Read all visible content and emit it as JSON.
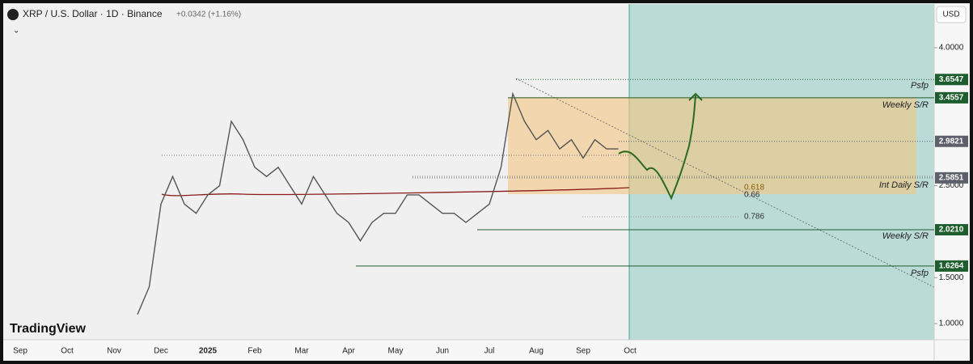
{
  "chart_data": {
    "type": "line",
    "symbol": "XRP / U.S. Dollar · 1D · Binance",
    "change": "+0.0342 (+1.16%)",
    "currency": "USD",
    "brand": "TradingView",
    "categories": [
      "Sep",
      null,
      null,
      null,
      "Oct",
      null,
      null,
      null,
      "Nov",
      null,
      null,
      null,
      "Dec",
      null,
      null,
      null,
      "2025",
      null,
      null,
      null,
      "Feb",
      null,
      null,
      null,
      "Mar",
      null,
      null,
      null,
      "Apr",
      null,
      null,
      null,
      "May",
      null,
      null,
      null,
      "Jun",
      null,
      null,
      null,
      "Jul",
      null,
      null,
      null,
      "Aug",
      null,
      null,
      null,
      "Sep",
      null,
      null,
      null,
      "Oct",
      null,
      null,
      null,
      null,
      null,
      null,
      null,
      null,
      null,
      null,
      null,
      null,
      null,
      null,
      null,
      null,
      null,
      null,
      null,
      null,
      null,
      null,
      null
    ],
    "values": [
      null,
      null,
      null,
      null,
      null,
      null,
      null,
      null,
      null,
      null,
      1.1,
      1.4,
      2.3,
      2.6,
      2.3,
      2.2,
      2.4,
      2.5,
      3.2,
      3.0,
      2.7,
      2.6,
      2.7,
      2.5,
      2.3,
      2.6,
      2.4,
      2.2,
      2.1,
      1.9,
      2.1,
      2.2,
      2.2,
      2.4,
      2.4,
      2.3,
      2.2,
      2.2,
      2.1,
      2.2,
      2.3,
      2.7,
      3.5,
      3.2,
      3.0,
      3.1,
      2.9,
      3.0,
      2.8,
      3.0,
      2.9,
      2.9,
      null,
      null,
      null,
      null,
      null,
      null,
      null,
      null,
      null,
      null,
      null,
      null,
      null,
      null,
      null,
      null,
      null,
      null,
      null,
      null,
      null,
      null,
      null,
      null
    ],
    "color": "#555555",
    "ylim": [
      0.825,
      4.475
    ],
    "yticks": [
      {
        "value": 4,
        "label": "4.0000"
      },
      {
        "value": 2.5,
        "label": "2.5000"
      },
      {
        "value": 1.5,
        "label": "1.5000"
      },
      {
        "value": 1,
        "label": "1.0000"
      }
    ],
    "price_labels": [
      3.6547,
      3.4557,
      2.9821,
      2.5851,
      {
        "value": 2.021,
        "label": "2.0210"
      },
      1.6264
    ],
    "price_label_colors": [
      "#1e5e2e",
      "#1e5e2e",
      "#5d606b",
      "#5d606b",
      "#1e5e2e",
      "#1e5e2e"
    ],
    "annotations": [
      "Psfp",
      "Weekly S/R",
      "Int Daily S/R",
      "Weekly S/R",
      "Psfp"
    ],
    "fib_labels": [
      "0.618",
      "0.66",
      "0.786"
    ]
  }
}
